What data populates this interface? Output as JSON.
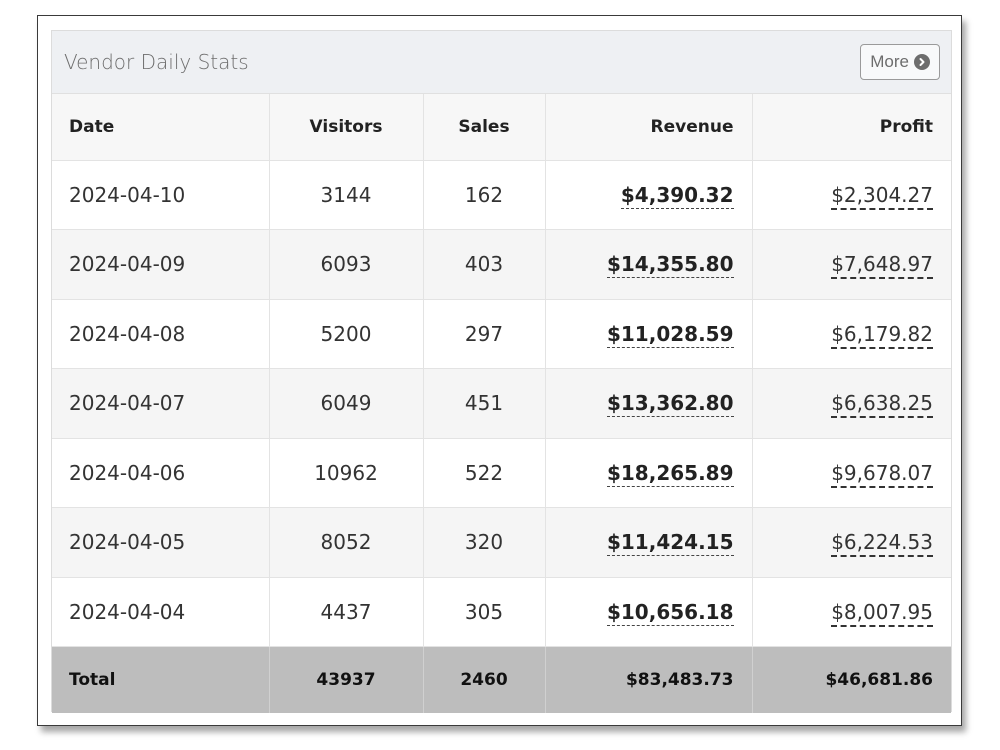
{
  "panel": {
    "title": "Vendor Daily Stats",
    "more_label": "More",
    "more_icon": "chevron-circle-right-icon"
  },
  "table": {
    "headers": [
      "Date",
      "Visitors",
      "Sales",
      "Revenue",
      "Profit"
    ],
    "rows": [
      {
        "date": "2024-04-10",
        "visitors": "3144",
        "sales": "162",
        "revenue": "$4,390.32",
        "profit": "$2,304.27"
      },
      {
        "date": "2024-04-09",
        "visitors": "6093",
        "sales": "403",
        "revenue": "$14,355.80",
        "profit": "$7,648.97"
      },
      {
        "date": "2024-04-08",
        "visitors": "5200",
        "sales": "297",
        "revenue": "$11,028.59",
        "profit": "$6,179.82"
      },
      {
        "date": "2024-04-07",
        "visitors": "6049",
        "sales": "451",
        "revenue": "$13,362.80",
        "profit": "$6,638.25"
      },
      {
        "date": "2024-04-06",
        "visitors": "10962",
        "sales": "522",
        "revenue": "$18,265.89",
        "profit": "$9,678.07"
      },
      {
        "date": "2024-04-05",
        "visitors": "8052",
        "sales": "320",
        "revenue": "$11,424.15",
        "profit": "$6,224.53"
      },
      {
        "date": "2024-04-04",
        "visitors": "4437",
        "sales": "305",
        "revenue": "$10,656.18",
        "profit": "$8,007.95"
      }
    ],
    "total": {
      "label": "Total",
      "visitors": "43937",
      "sales": "2460",
      "revenue": "$83,483.73",
      "profit": "$46,681.86"
    }
  },
  "colors": {
    "header_bg": "#eef0f3",
    "total_row_bg": "#bdbdbd",
    "striped_row_bg": "#f5f5f5"
  }
}
